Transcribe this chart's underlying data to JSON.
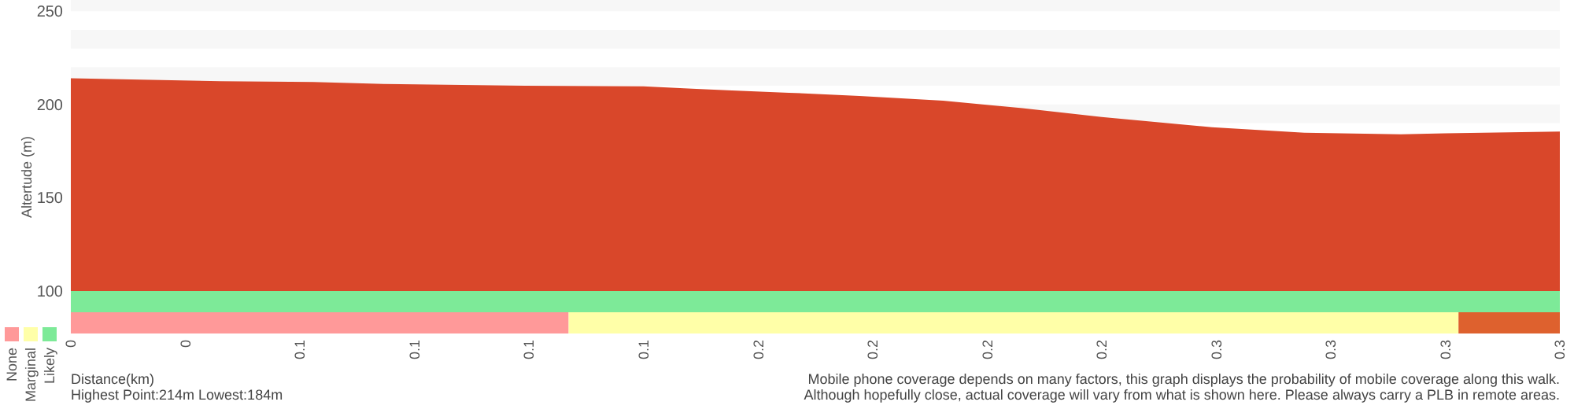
{
  "chart_data": [
    {
      "type": "area",
      "ylabel": "Altertude (m)",
      "x": [
        0,
        0.034,
        0.055,
        0.071,
        0.103,
        0.13,
        0.141,
        0.149,
        0.163,
        0.179,
        0.198,
        0.216,
        0.234,
        0.259,
        0.28,
        0.302,
        0.312,
        0.338
      ],
      "series": [
        {
          "color": "#d9472a",
          "values": [
            214,
            212.5,
            212,
            211,
            210,
            209.7,
            208.5,
            207.6,
            206.3,
            204.6,
            202,
            198,
            193.3,
            187.8,
            184.9,
            184,
            184.5,
            185.5
          ]
        }
      ],
      "xlim": [
        0,
        0.338
      ],
      "ylim": [
        100,
        256
      ],
      "yticks": [
        100,
        150,
        200,
        250
      ],
      "tick_labels": "y",
      "bands": [
        {
          "axis": "y",
          "from": 250,
          "to": 256,
          "color": "#f7f7f7"
        },
        {
          "axis": "y",
          "from": 230,
          "to": 240,
          "color": "#f7f7f7"
        },
        {
          "axis": "y",
          "from": 210,
          "to": 220,
          "color": "#f7f7f7"
        },
        {
          "axis": "y",
          "from": 190,
          "to": 200,
          "color": "#f7f7f7"
        }
      ]
    },
    {
      "type": "bar",
      "orientation": "horizontal",
      "stacked": true,
      "categories": [
        null,
        null
      ],
      "series": [
        {
          "name": "None",
          "color": "#ff9999",
          "values": [
            0,
            0.113
          ]
        },
        {
          "name": "Marginal",
          "color": "#ffffa8",
          "values": [
            0,
            0.202
          ]
        },
        {
          "name": "Likely",
          "color": "#7dea98",
          "values": [
            0.338,
            0
          ]
        },
        {
          "color": "#de612e",
          "values": [
            0,
            0.023
          ]
        }
      ],
      "xlim": [
        0,
        0.338
      ],
      "tick_labels": "x",
      "legend": "left",
      "xticks": [
        0,
        {
          "value": 0.026,
          "label": "0"
        },
        {
          "value": 0.052,
          "label": "0.1"
        },
        {
          "value": 0.078,
          "label": "0.1"
        },
        {
          "value": 0.104,
          "label": "0.1"
        },
        {
          "value": 0.13,
          "label": "0.1"
        },
        {
          "value": 0.156,
          "label": "0.2"
        },
        {
          "value": 0.182,
          "label": "0.2"
        },
        {
          "value": 0.208,
          "label": "0.2"
        },
        {
          "value": 0.234,
          "label": "0.2"
        },
        {
          "value": 0.26,
          "label": "0.3"
        },
        {
          "value": 0.286,
          "label": "0.3"
        },
        {
          "value": 0.312,
          "label": "0.3"
        },
        {
          "value": 0.338,
          "label": "0.3"
        }
      ],
      "annotations": [
        "Distance(km)",
        "Highest Point:214m Lowest:184m",
        "Mobile phone coverage depends on many factors, this graph displays the probability of mobile coverage along this walk.",
        "Although hopefully close, actual coverage will vary from what is shown here. Please always carry a PLB in remote areas."
      ]
    }
  ]
}
